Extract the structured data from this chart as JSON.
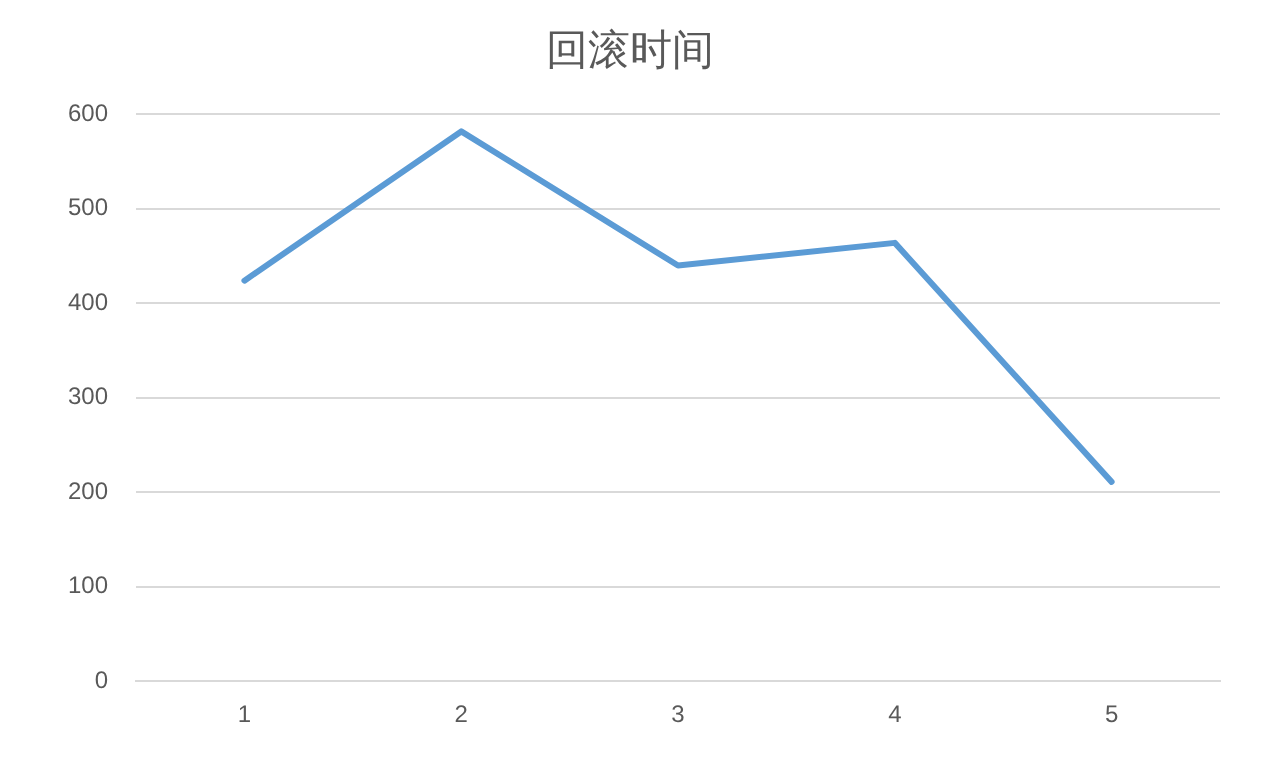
{
  "chart_data": {
    "type": "line",
    "title": "回滚时间",
    "categories": [
      "1",
      "2",
      "3",
      "4",
      "5"
    ],
    "series": [
      {
        "color": "#5b9bd5",
        "values": [
          424,
          582,
          440,
          464,
          211
        ]
      }
    ],
    "ylim": [
      0,
      600
    ],
    "yticks": [
      0,
      100,
      200,
      300,
      400,
      500,
      600
    ],
    "grid": "y",
    "legend": false,
    "marker": "none",
    "line_style": "solid"
  }
}
